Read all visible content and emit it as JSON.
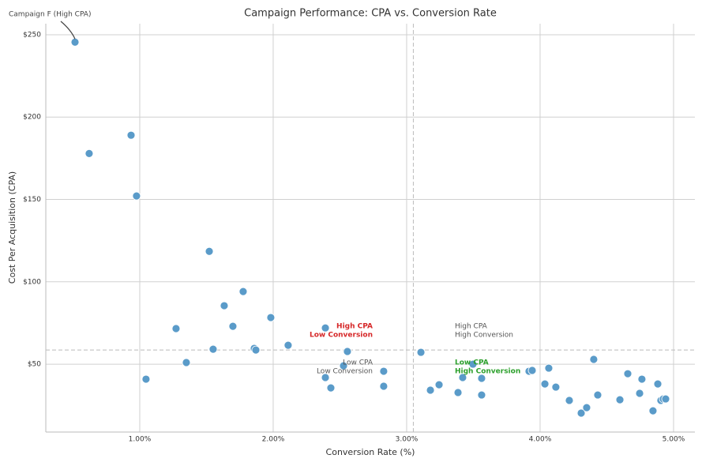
{
  "chart_data": {
    "type": "scatter",
    "title": "Campaign Performance: CPA vs. Conversion Rate",
    "x_label": "Conversion Rate (%)",
    "y_label": "Cost Per Acquisition (CPA)",
    "color": "#5a9bc9",
    "grid": true,
    "x": [
      0.515,
      0.621,
      0.935,
      0.976,
      1.521,
      1.047,
      1.272,
      1.349,
      1.55,
      1.633,
      1.698,
      1.775,
      1.858,
      1.87,
      1.982,
      2.112,
      2.391,
      2.391,
      2.432,
      2.527,
      2.556,
      2.828,
      2.828,
      3.107,
      3.178,
      3.243,
      3.385,
      3.42,
      3.497,
      3.562,
      3.562,
      3.917,
      3.941,
      4.036,
      4.065,
      4.118,
      4.219,
      4.308,
      4.349,
      4.402,
      4.432,
      4.598,
      4.657,
      4.746,
      4.763,
      4.846,
      4.882,
      4.905,
      4.923,
      4.941
    ],
    "values": [
      245.5,
      177.9,
      189.0,
      152.1,
      118.5,
      40.9,
      71.6,
      51.0,
      59.1,
      85.5,
      73.0,
      94.1,
      59.6,
      58.6,
      78.3,
      61.5,
      72.0,
      41.9,
      35.6,
      49.0,
      57.7,
      45.7,
      36.6,
      57.2,
      34.2,
      37.5,
      32.8,
      41.9,
      50.0,
      41.4,
      31.3,
      45.7,
      46.2,
      38.0,
      47.6,
      36.1,
      28.0,
      20.3,
      23.6,
      52.9,
      31.3,
      28.4,
      44.2,
      32.3,
      40.9,
      21.7,
      38.0,
      28.0,
      28.9,
      28.9
    ],
    "xlim": [
      0.296,
      5.16
    ],
    "ylim": [
      8.8,
      256.7
    ],
    "xticks": [
      {
        "value": 1,
        "label": "1.00%"
      },
      {
        "value": 2,
        "label": "2.00%"
      },
      {
        "value": 3,
        "label": "3.00%"
      },
      {
        "value": 4,
        "label": "4.00%"
      },
      {
        "value": 5,
        "label": "5.00%"
      }
    ],
    "yticks": [
      {
        "value": 50,
        "label": "$50"
      },
      {
        "value": 100,
        "label": "$100"
      },
      {
        "value": 150,
        "label": "$150"
      },
      {
        "value": 200,
        "label": "$200"
      },
      {
        "value": 250,
        "label": "$250"
      }
    ],
    "vline": 3.05,
    "hline": 58.6,
    "annotations": [
      {
        "lines": [
          "Campaign F (High CPA)"
        ],
        "color": "#444444"
      },
      {
        "lines": [
          "High CPA",
          "Low Conversion"
        ],
        "color": "#d62728"
      },
      {
        "lines": [
          "Low CPA",
          "Low Conversion"
        ],
        "color": "#555555"
      },
      {
        "lines": [
          "High CPA",
          "High Conversion"
        ],
        "color": "#555555"
      },
      {
        "lines": [
          "Low CPA",
          "High Conversion"
        ],
        "color": "#2ca02c"
      }
    ]
  }
}
